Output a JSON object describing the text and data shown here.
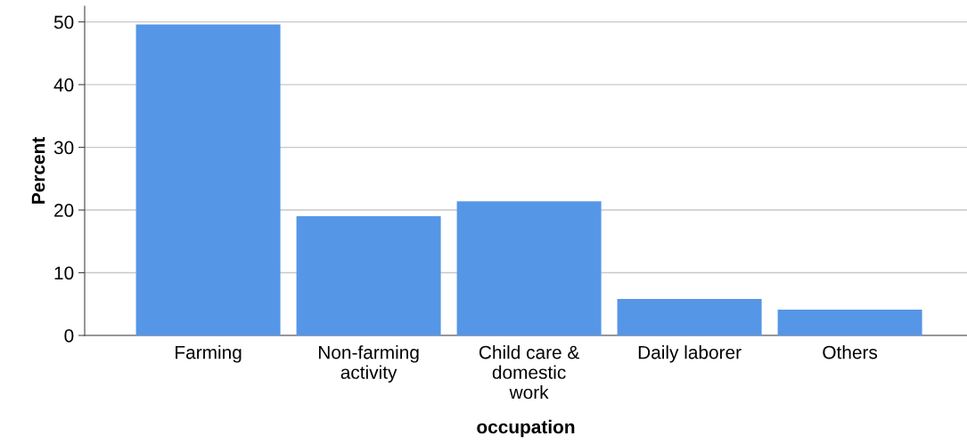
{
  "chart_data": {
    "type": "bar",
    "categories": [
      "Farming",
      "Non-farming\nactivity",
      "Child care &\ndomestic\nwork",
      "Daily laborer",
      "Others"
    ],
    "values": [
      49.6,
      19.0,
      21.4,
      5.8,
      4.1
    ],
    "color": "#5596e6",
    "xlabel": "occupation",
    "ylabel": "Percent",
    "ylim": [
      0,
      52.5
    ],
    "yticks": [
      0,
      10,
      20,
      30,
      40,
      50
    ],
    "grid": "y"
  }
}
